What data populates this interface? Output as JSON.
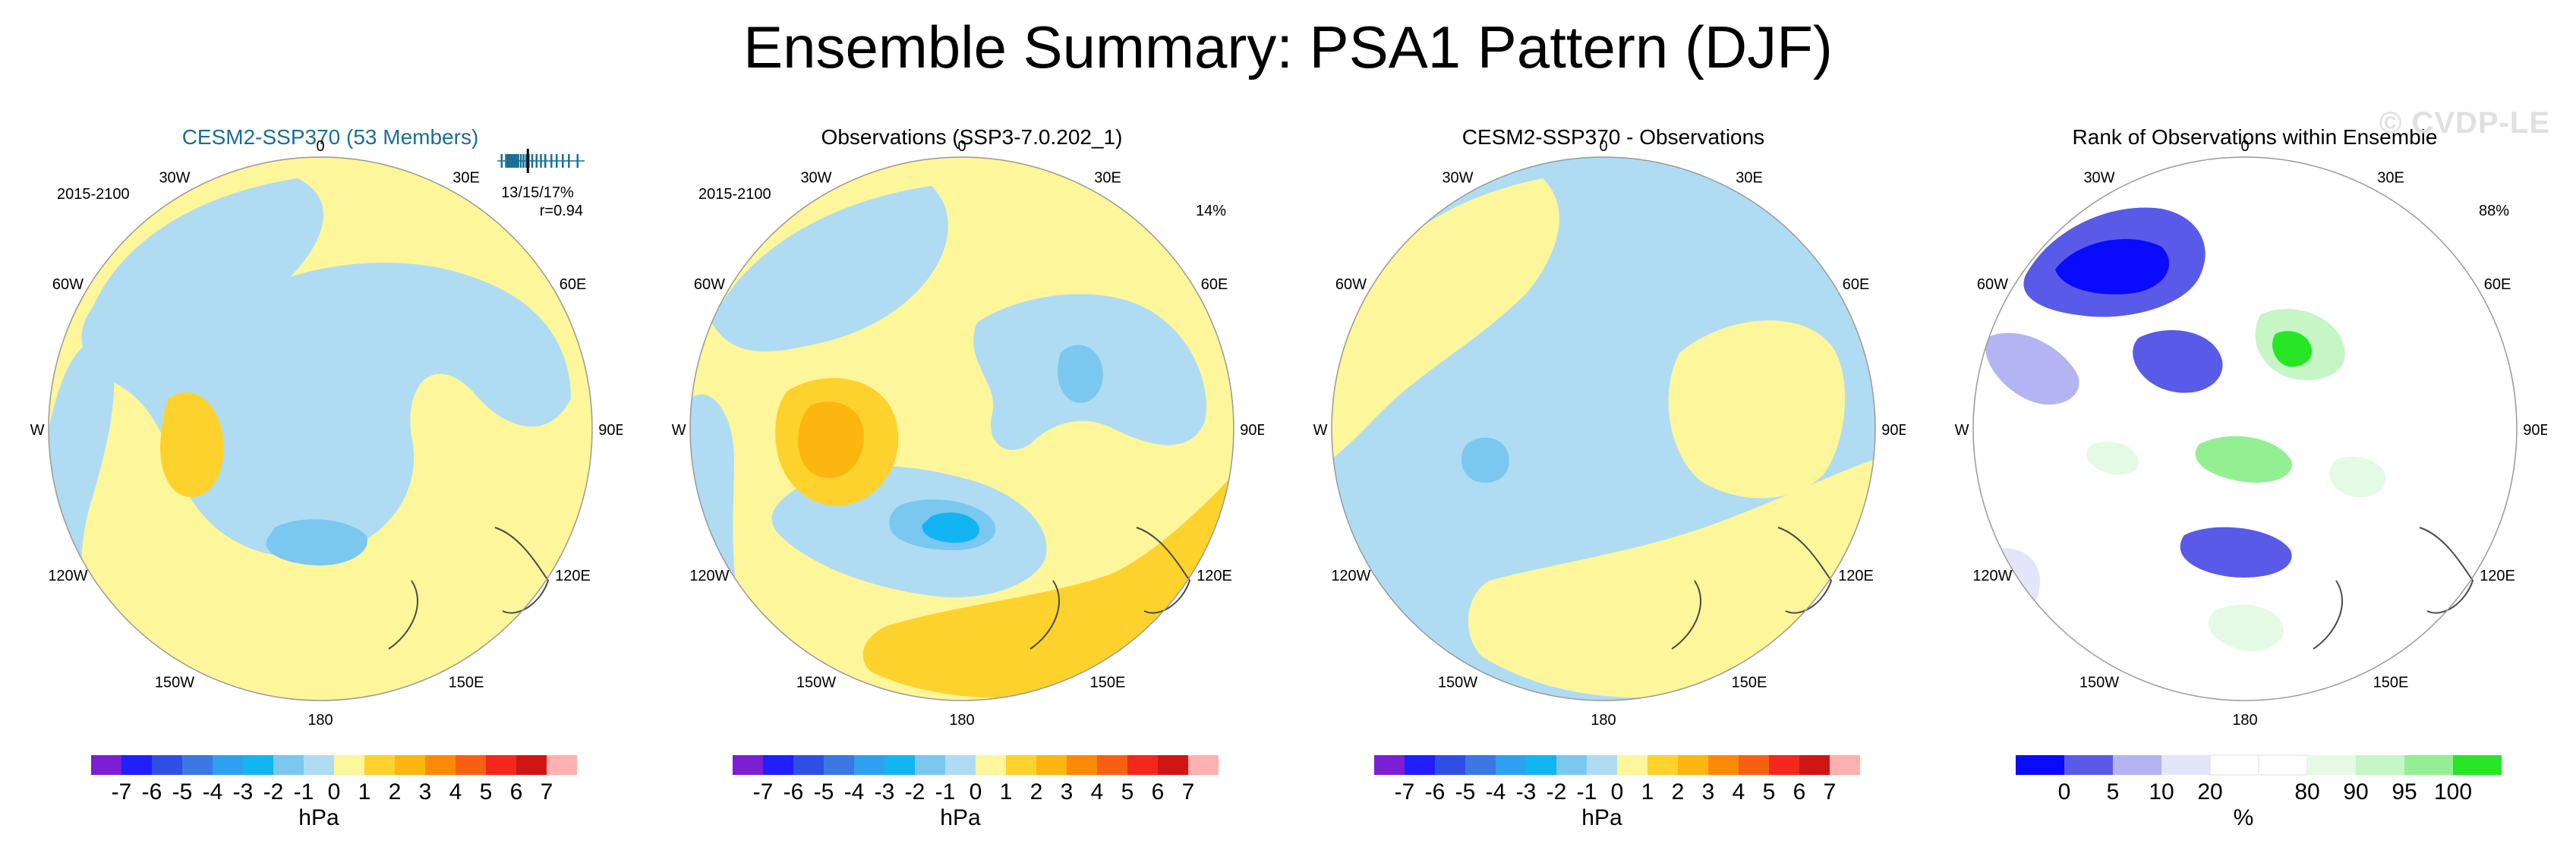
{
  "figure_title": "Ensemble Summary: PSA1 Pattern (DJF)",
  "watermark": "© CVDP-LE",
  "map": {
    "lon_labels": [
      "0",
      "30E",
      "60E",
      "90E",
      "120E",
      "150E",
      "180",
      "150W",
      "120W",
      "90W",
      "60W",
      "30W"
    ]
  },
  "colors": {
    "title_accent": "#1a6e96",
    "land_outline": "#4a4a4a",
    "hpa_scale": [
      "#7b1ed6",
      "#1f1fff",
      "#2e4fe6",
      "#3b78e4",
      "#2fa0f0",
      "#12b5f2",
      "#7ac8ef",
      "#afdcf3",
      "#fdf69a",
      "#fdd22c",
      "#fcb60f",
      "#fd8a06",
      "#f76012",
      "#f3271b",
      "#d11515",
      "#ffb0b0"
    ],
    "pct_scale": [
      "#0a0aff",
      "#5a5ae8",
      "#b4b4f2",
      "#e4e4fa",
      "#ffffff",
      "#ffffff",
      "#e4fae4",
      "#c6f5c6",
      "#92f092",
      "#26e626"
    ]
  },
  "chart_data": [
    {
      "type": "heatmap",
      "panel": "CESM2-SSP370 ensemble mean",
      "title": "CESM2-SSP370 (53 Members)",
      "period": "2015-2100",
      "rank_text": "13/15/17%",
      "corr_text": "r=0.94",
      "spread_ticks": [
        0.05,
        0.1,
        0.12,
        0.14,
        0.16,
        0.18,
        0.2,
        0.22,
        0.24,
        0.27,
        0.3,
        0.33,
        0.36,
        0.4,
        0.45,
        0.5,
        0.55,
        0.62,
        0.68,
        0.75,
        0.82,
        0.92
      ],
      "spread_obs": 0.35,
      "colorbar": {
        "labels": [
          "-7",
          "-6",
          "-5",
          "-4",
          "-3",
          "-2",
          "-1",
          "0",
          "1",
          "2",
          "3",
          "4",
          "5",
          "6",
          "7"
        ],
        "unit": "hPa"
      },
      "field": {
        "positive_regions": [
          "90W–60W coast (+2)",
          "Atlantic/Indian sector 30E–60E (+1)",
          "Pacific 150W–180 (+1)"
        ],
        "negative_regions": [
          "Amundsen–Ross sector 120W–150W (-2)",
          "Antarctic interior (-1)"
        ],
        "range": [
          -2,
          2
        ]
      }
    },
    {
      "type": "heatmap",
      "panel": "Observations",
      "title": "Observations (SSP3-7.0.202_1)",
      "period": "2015-2100",
      "percent": "14%",
      "colorbar": {
        "labels": [
          "-7",
          "-6",
          "-5",
          "-4",
          "-3",
          "-2",
          "-1",
          "0",
          "1",
          "2",
          "3",
          "4",
          "5",
          "6",
          "7"
        ],
        "unit": "hPa"
      },
      "field": {
        "positive_regions": [
          "90W (+3)",
          "150E–180 (+2)",
          "30E (+1)"
        ],
        "negative_regions": [
          "120W–150W (-3)",
          "60E–90E (-2)"
        ],
        "range": [
          -3,
          3
        ]
      }
    },
    {
      "type": "heatmap",
      "panel": "Difference",
      "title": "CESM2-SSP370 - Observations",
      "colorbar": {
        "labels": [
          "-7",
          "-6",
          "-5",
          "-4",
          "-3",
          "-2",
          "-1",
          "0",
          "1",
          "2",
          "3",
          "4",
          "5",
          "6",
          "7"
        ],
        "unit": "hPa"
      },
      "field": {
        "positive_regions": [
          "30W–90W (+1)",
          "60E–90E (+1)",
          "180 (+1)"
        ],
        "negative_regions": [
          "90W (-2)",
          "Antarctic interior (-1)"
        ],
        "range": [
          -2,
          1
        ]
      }
    },
    {
      "type": "heatmap",
      "panel": "Rank",
      "title": "Rank of Observations within Ensemble",
      "percent": "88%",
      "colorbar": {
        "labels": [
          "0",
          "5",
          "10",
          "20",
          "80",
          "90",
          "95",
          "100"
        ],
        "unit": "%"
      },
      "field": {
        "low_rank_regions": [
          "30W–60W (<5%)",
          "120W–150W (<10%)"
        ],
        "high_rank_regions": [
          "30E–60E (>95%)",
          "Antarctic Peninsula (90-95%)"
        ]
      }
    }
  ]
}
